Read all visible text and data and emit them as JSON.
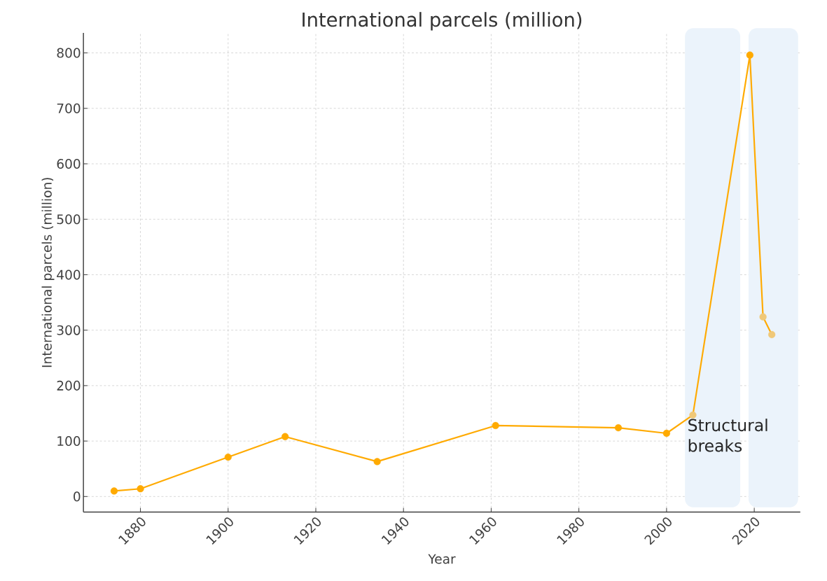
{
  "chart_data": {
    "type": "line",
    "title": "International parcels (million)",
    "xlabel": "Year",
    "ylabel": "International parcels (million)",
    "x": [
      1874,
      1880,
      1900,
      1913,
      1934,
      1961,
      1989,
      2000,
      2006,
      2019,
      2022,
      2024
    ],
    "series": [
      {
        "color": "#ffaa00",
        "colors": [
          "#ffaa00",
          "#ffaa00",
          "#ffaa00",
          "#ffaa00",
          "#ffaa00",
          "#ffaa00",
          "#ffaa00",
          "#ffaa00",
          "#f0c878",
          "#ffaa00",
          "#f0c878",
          "#f0c878"
        ],
        "values": [
          10,
          14,
          71,
          108,
          63,
          128,
          124,
          114,
          147,
          796,
          324,
          292
        ]
      }
    ],
    "xlim": [
      1867,
      2030.5
    ],
    "ylim": [
      -28,
      836
    ],
    "xticks": [
      1880,
      1900,
      1920,
      1940,
      1960,
      1980,
      2000,
      2020
    ],
    "yticks": [
      0,
      100,
      200,
      300,
      400,
      500,
      600,
      700,
      800
    ],
    "bands": [
      {
        "axis": "x",
        "from": 2004.2,
        "to": 2016.8,
        "label": "Structural breaks",
        "color": "#ebf3fb"
      },
      {
        "axis": "x",
        "from": 2018.7,
        "to": 2030,
        "color": "#ebf3fb"
      }
    ],
    "grid": true,
    "marker": "circle",
    "line_style": "solid"
  }
}
